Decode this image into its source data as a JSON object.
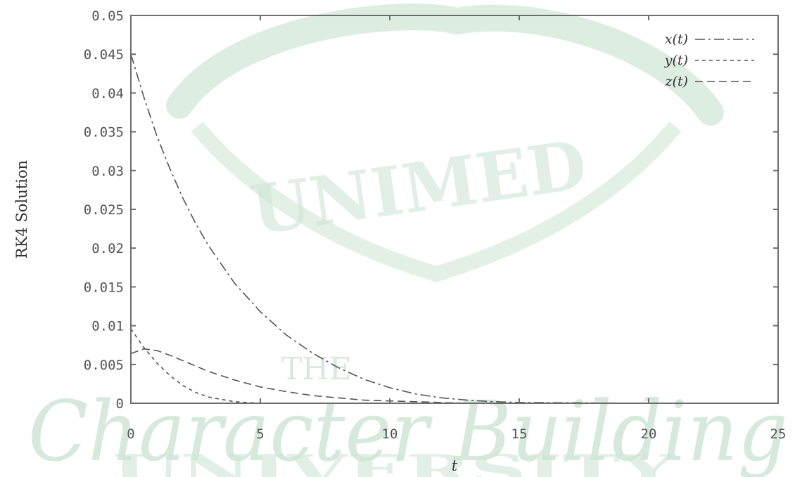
{
  "watermark": {
    "logo_text": "UNIMED",
    "small_text": "THE",
    "script_text": "Character Building",
    "bottom_text": "UNIVERSITY",
    "color": "#cfe6d6"
  },
  "chart_data": {
    "type": "line",
    "title": "",
    "xlabel": "t",
    "ylabel": "RK4 Solution",
    "xlim": [
      0,
      25
    ],
    "ylim": [
      0,
      0.05
    ],
    "xticks": [
      0,
      5,
      10,
      15,
      20,
      25
    ],
    "xtick_labels": [
      "0",
      "5",
      "10",
      "15",
      "20",
      "25"
    ],
    "yticks": [
      0,
      0.005,
      0.01,
      0.015,
      0.02,
      0.025,
      0.03,
      0.035,
      0.04,
      0.045,
      0.05
    ],
    "ytick_labels": [
      "0",
      "0.005",
      "0.01",
      "0.015",
      "0.02",
      "0.025",
      "0.03",
      "0.035",
      "0.04",
      "0.045",
      "0.05"
    ],
    "grid": false,
    "legend_position": "top-right",
    "x": [
      0,
      0.5,
      1,
      1.5,
      2,
      2.5,
      3,
      4,
      5,
      6,
      7,
      8,
      9,
      10,
      11,
      12,
      13,
      14,
      15,
      20,
      25
    ],
    "series": [
      {
        "name": "x(t)",
        "linestyle": "dashdot",
        "color": "#555555",
        "values": [
          0.045,
          0.0395,
          0.0345,
          0.0303,
          0.0265,
          0.0232,
          0.0203,
          0.0155,
          0.0118,
          0.0088,
          0.0065,
          0.0046,
          0.0031,
          0.002,
          0.0012,
          0.0007,
          0.0004,
          0.0002,
          0.0001,
          0,
          0
        ]
      },
      {
        "name": "y(t)",
        "linestyle": "dotted",
        "color": "#555555",
        "values": [
          0.0096,
          0.0072,
          0.0052,
          0.0036,
          0.0023,
          0.0014,
          0.0008,
          0.0002,
          0,
          0,
          0,
          0,
          0,
          0,
          0,
          0,
          0,
          0,
          0,
          0,
          0
        ]
      },
      {
        "name": "z(t)",
        "linestyle": "dashed",
        "color": "#555555",
        "values": [
          0.0064,
          0.007,
          0.0068,
          0.0062,
          0.0055,
          0.0048,
          0.0041,
          0.003,
          0.0021,
          0.0015,
          0.001,
          0.0007,
          0.0004,
          0.0003,
          0.0002,
          0.0001,
          0,
          0,
          0,
          0,
          0
        ]
      }
    ]
  }
}
